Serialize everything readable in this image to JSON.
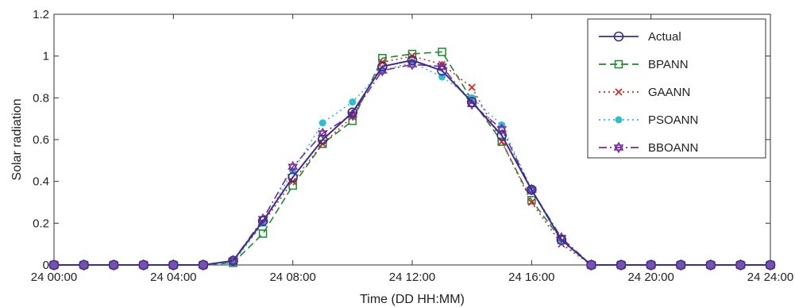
{
  "chart_data": {
    "type": "line",
    "xlabel": "Time (DD HH:MM)",
    "ylabel": "Solar radiation",
    "x_ticks": [
      "24 00:00",
      "24 04:00",
      "24 08:00",
      "24 12:00",
      "24 16:00",
      "24 20:00",
      "24 24:00"
    ],
    "y_ticks": [
      "0",
      "0.2",
      "0.4",
      "0.6",
      "0.8",
      "1",
      "1.2"
    ],
    "xlim": [
      0,
      24
    ],
    "ylim": [
      0,
      1.2
    ],
    "grid": false,
    "legend_position": "top-right",
    "x": [
      0,
      1,
      2,
      3,
      4,
      5,
      6,
      7,
      8,
      9,
      10,
      11,
      12,
      13,
      14,
      15,
      16,
      17,
      18,
      19,
      20,
      21,
      22,
      23,
      24
    ],
    "series": [
      {
        "name": "Actual",
        "color": "#3a2d8f",
        "dash": "solid",
        "marker": "circle",
        "values": [
          0,
          0,
          0,
          0,
          0,
          0,
          0.02,
          0.21,
          0.42,
          0.6,
          0.73,
          0.95,
          0.98,
          0.93,
          0.78,
          0.62,
          0.36,
          0.12,
          0,
          0,
          0,
          0,
          0,
          0,
          0
        ]
      },
      {
        "name": "BPANN",
        "color": "#1a8a2a",
        "dash": "dashed",
        "marker": "square",
        "values": [
          0,
          0,
          0,
          0,
          0,
          0,
          0.01,
          0.15,
          0.38,
          0.58,
          0.69,
          0.99,
          1.01,
          1.02,
          0.79,
          0.59,
          0.31,
          0.12,
          0,
          0,
          0,
          0,
          0,
          0,
          0
        ]
      },
      {
        "name": "GAANN",
        "color": "#d62a2a",
        "dash": "dotted",
        "marker": "x",
        "values": [
          0,
          0,
          0,
          0,
          0,
          0,
          0.02,
          0.2,
          0.4,
          0.58,
          0.71,
          0.97,
          1.0,
          0.96,
          0.85,
          0.59,
          0.3,
          0.1,
          0,
          0,
          0,
          0,
          0,
          0,
          0
        ]
      },
      {
        "name": "PSOANN",
        "color": "#2bbfd6",
        "dash": "dotted",
        "marker": "dot",
        "values": [
          0,
          0,
          0,
          0,
          0,
          0,
          0.01,
          0.2,
          0.45,
          0.68,
          0.78,
          0.93,
          0.97,
          0.9,
          0.8,
          0.67,
          0.36,
          0.11,
          0,
          0,
          0,
          0,
          0,
          0,
          0
        ]
      },
      {
        "name": "BBOANN",
        "color": "#7a2a9a",
        "dash": "dashdot",
        "marker": "hexagram",
        "values": [
          0,
          0,
          0,
          0,
          0,
          0,
          0.02,
          0.22,
          0.47,
          0.63,
          0.72,
          0.93,
          0.96,
          0.95,
          0.77,
          0.65,
          0.36,
          0.13,
          0,
          0,
          0,
          0,
          0,
          0,
          0
        ]
      }
    ]
  }
}
